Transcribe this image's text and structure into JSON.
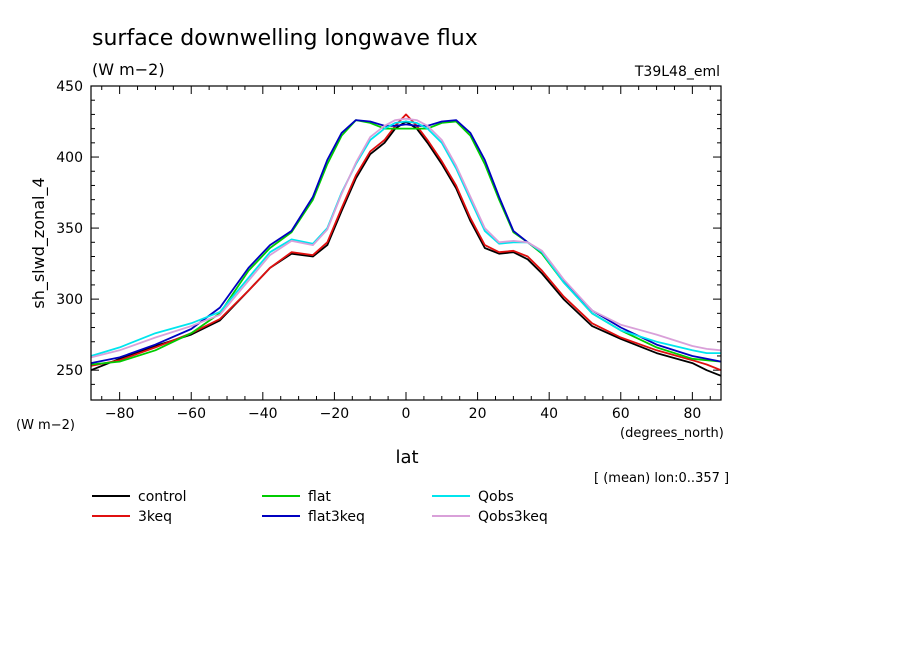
{
  "chart_data": {
    "type": "line",
    "title": "surface downwelling longwave flux",
    "subtitle": "(W m−2)",
    "run_label": "T39L48_eml",
    "ylabel": "sh_slwd_zonal_4",
    "yunits": "(W m−2)",
    "xlabel": "lat",
    "xunits": "(degrees_north)",
    "note": "[ (mean) lon:0..357 ]",
    "xlim": [
      -88,
      88
    ],
    "ylim": [
      229,
      450
    ],
    "xticks": [
      -80,
      -60,
      -40,
      -20,
      0,
      20,
      40,
      60,
      80
    ],
    "yticks": [
      250,
      300,
      350,
      400,
      450
    ],
    "x": [
      -88,
      -80,
      -70,
      -60,
      -52,
      -44,
      -38,
      -32,
      -26,
      -22,
      -18,
      -14,
      -10,
      -6,
      -3,
      0,
      3,
      6,
      10,
      14,
      18,
      22,
      26,
      30,
      34,
      38,
      44,
      52,
      60,
      70,
      80,
      84,
      88
    ],
    "series": [
      {
        "name": "control",
        "color": "#000000",
        "values": [
          250,
          258,
          267,
          275,
          285,
          306,
          322,
          332,
          330,
          338,
          362,
          385,
          402,
          410,
          420,
          425,
          420,
          410,
          395,
          378,
          355,
          336,
          332,
          333,
          328,
          318,
          300,
          281,
          272,
          262,
          255,
          250,
          246
        ]
      },
      {
        "name": "3keq",
        "color": "#e01010",
        "values": [
          253,
          257,
          266,
          276,
          286,
          306,
          322,
          333,
          331,
          340,
          364,
          387,
          404,
          412,
          422,
          430,
          422,
          412,
          397,
          380,
          357,
          338,
          333,
          334,
          330,
          320,
          302,
          283,
          273,
          264,
          257,
          254,
          250
        ]
      },
      {
        "name": "flat",
        "color": "#00cc00",
        "values": [
          254,
          256,
          264,
          276,
          290,
          320,
          336,
          347,
          370,
          395,
          415,
          426,
          424,
          420,
          420,
          420,
          420,
          420,
          424,
          425,
          415,
          395,
          370,
          347,
          340,
          332,
          312,
          290,
          278,
          266,
          258,
          257,
          256
        ]
      },
      {
        "name": "flat3keq",
        "color": "#0000c0",
        "values": [
          255,
          259,
          268,
          279,
          294,
          322,
          338,
          348,
          372,
          398,
          417,
          426,
          425,
          422,
          422,
          423,
          422,
          422,
          425,
          426,
          417,
          398,
          372,
          348,
          340,
          333,
          313,
          292,
          280,
          268,
          260,
          258,
          256
        ]
      },
      {
        "name": "Qobs",
        "color": "#00e5ee",
        "values": [
          260,
          266,
          276,
          283,
          291,
          315,
          333,
          342,
          339,
          350,
          375,
          395,
          412,
          420,
          424,
          425,
          424,
          420,
          410,
          392,
          370,
          348,
          339,
          340,
          340,
          333,
          312,
          290,
          278,
          270,
          264,
          262,
          262
        ]
      },
      {
        "name": "Qobs3keq",
        "color": "#d9a0d9",
        "values": [
          259,
          264,
          273,
          281,
          289,
          313,
          331,
          341,
          338,
          349,
          374,
          396,
          414,
          422,
          426,
          427,
          426,
          422,
          412,
          394,
          372,
          350,
          340,
          341,
          340,
          334,
          314,
          292,
          282,
          275,
          267,
          265,
          264
        ]
      }
    ],
    "grid": false,
    "legend_position": "bottom"
  }
}
